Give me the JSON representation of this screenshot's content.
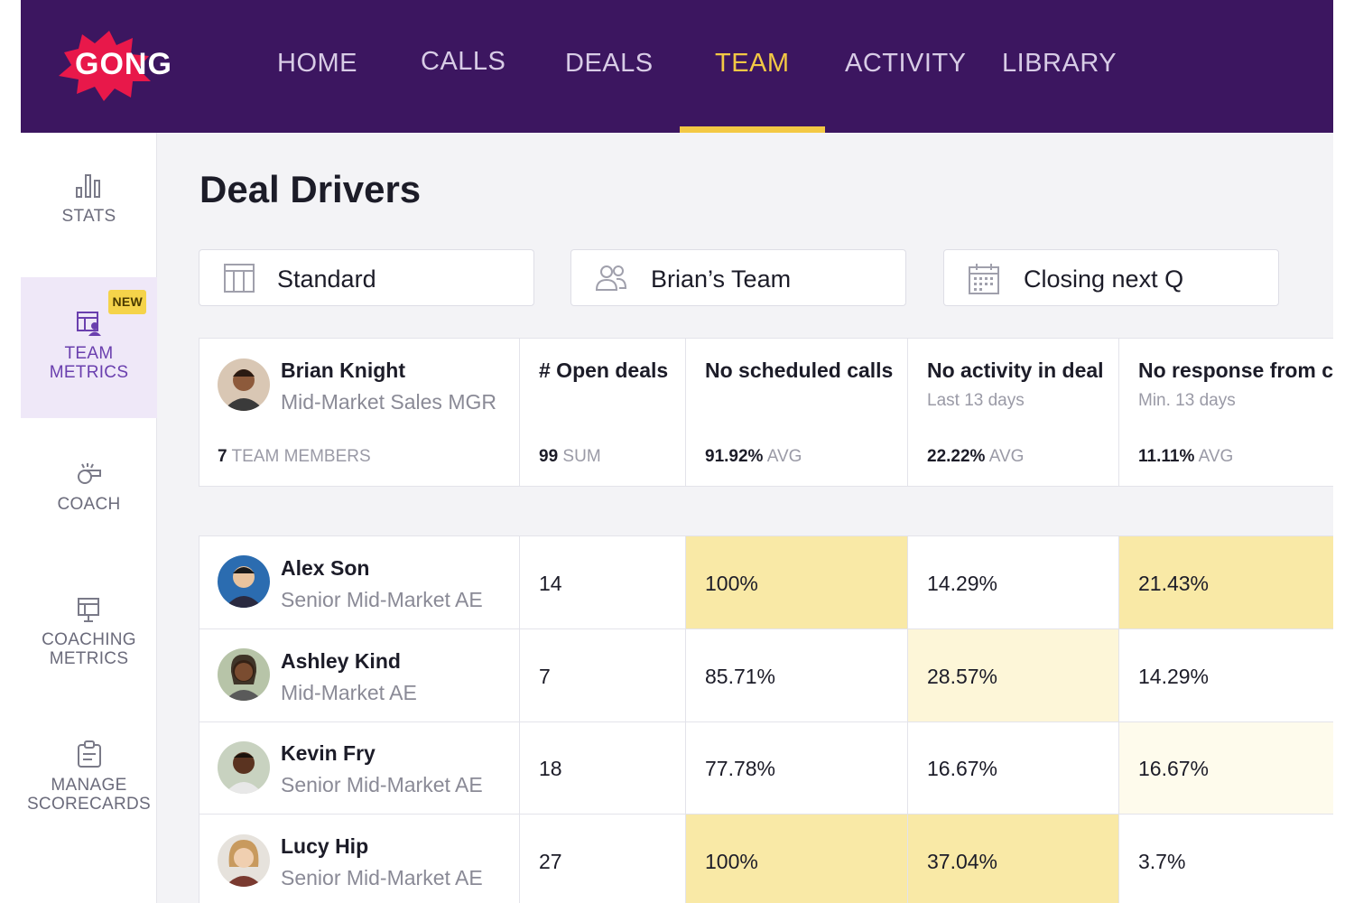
{
  "brand": {
    "name": "GONG",
    "color": "#e8184a"
  },
  "nav": {
    "items": [
      "HOME",
      "CALLS",
      "DEALS",
      "TEAM",
      "ACTIVITY",
      "LIBRARY"
    ],
    "active": "TEAM"
  },
  "sidebar": {
    "stats": "STATS",
    "team_metrics": [
      "TEAM",
      "METRICS"
    ],
    "new_badge": "NEW",
    "coach": "COACH",
    "coaching_metrics": [
      "COACHING",
      "METRICS"
    ],
    "manage_scorecards": [
      "MANAGE",
      "SCORECARDS"
    ]
  },
  "page": {
    "title": "Deal Drivers"
  },
  "filters": {
    "view": "Standard",
    "team": "Brian’s Team",
    "period": "Closing next Q"
  },
  "summary": {
    "manager_name": "Brian Knight",
    "manager_role": "Mid-Market Sales MGR",
    "members_count": "7",
    "members_label": "TEAM MEMBERS",
    "columns": [
      {
        "title": "# Open deals",
        "sub": "",
        "value": "99",
        "agg": "SUM"
      },
      {
        "title": "No scheduled calls",
        "sub": "",
        "value": "91.92%",
        "agg": "AVG"
      },
      {
        "title": "No activity in deal",
        "sub": "Last 13 days",
        "value": "22.22%",
        "agg": "AVG"
      },
      {
        "title": "No response from co",
        "sub": "Min. 13 days",
        "value": "11.11%",
        "agg": "AVG"
      }
    ]
  },
  "rows": [
    {
      "name": "Alex Son",
      "role": "Senior Mid-Market AE",
      "open": "14",
      "no_calls": "100%",
      "no_activity": "14.29%",
      "no_response": "21.43%"
    },
    {
      "name": "Ashley Kind",
      "role": "Mid-Market AE",
      "open": "7",
      "no_calls": "85.71%",
      "no_activity": "28.57%",
      "no_response": "14.29%"
    },
    {
      "name": "Kevin Fry",
      "role": "Senior Mid-Market AE",
      "open": "18",
      "no_calls": "77.78%",
      "no_activity": "16.67%",
      "no_response": "16.67%"
    },
    {
      "name": "Lucy Hip",
      "role": "Senior Mid-Market AE",
      "open": "27",
      "no_calls": "100%",
      "no_activity": "37.04%",
      "no_response": "3.7%"
    }
  ],
  "colors": {
    "nav_bg": "#3c1660",
    "nav_active": "#f3c844",
    "highlight_strong": "#f9e9a6",
    "highlight_light": "#fdf6d8"
  }
}
